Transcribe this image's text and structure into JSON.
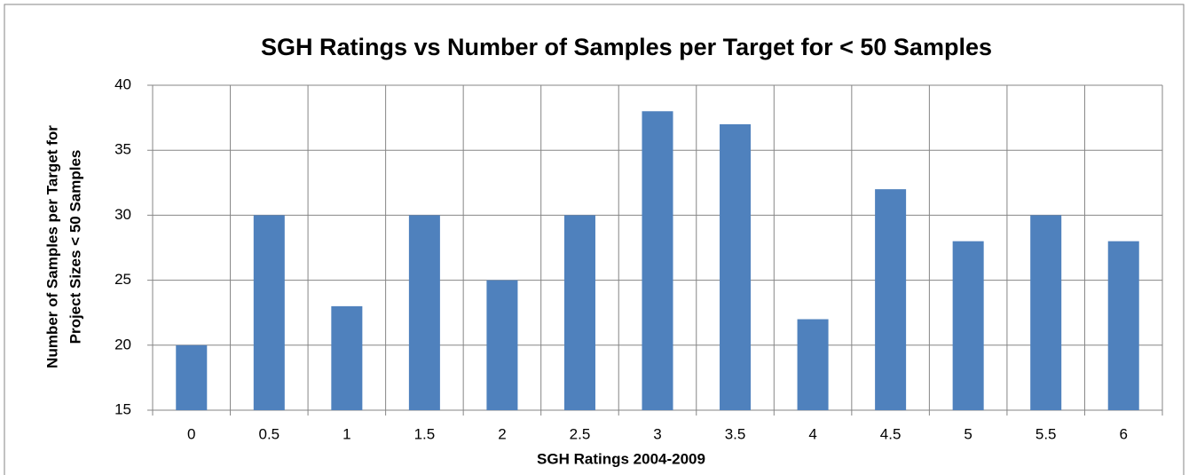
{
  "chart_data": {
    "type": "bar",
    "title": "SGH Ratings vs Number of Samples per Target for < 50 Samples",
    "x_label": "SGH Ratings 2004-2009",
    "y_label": [
      "Number of Samples per Target for",
      "Project Sizes < 50 Samples"
    ],
    "categories": [
      "0",
      "0.5",
      "1",
      "1.5",
      "2",
      "2.5",
      "3",
      "3.5",
      "4",
      "4.5",
      "5",
      "5.5",
      "6"
    ],
    "values": [
      20,
      30,
      23,
      30,
      25,
      30,
      38,
      37,
      22,
      32,
      28,
      30,
      28
    ],
    "color": "#4f81bd",
    "ylim": [
      15,
      40
    ],
    "yticks": [
      15,
      20,
      25,
      30,
      35,
      40
    ],
    "grid": true
  }
}
